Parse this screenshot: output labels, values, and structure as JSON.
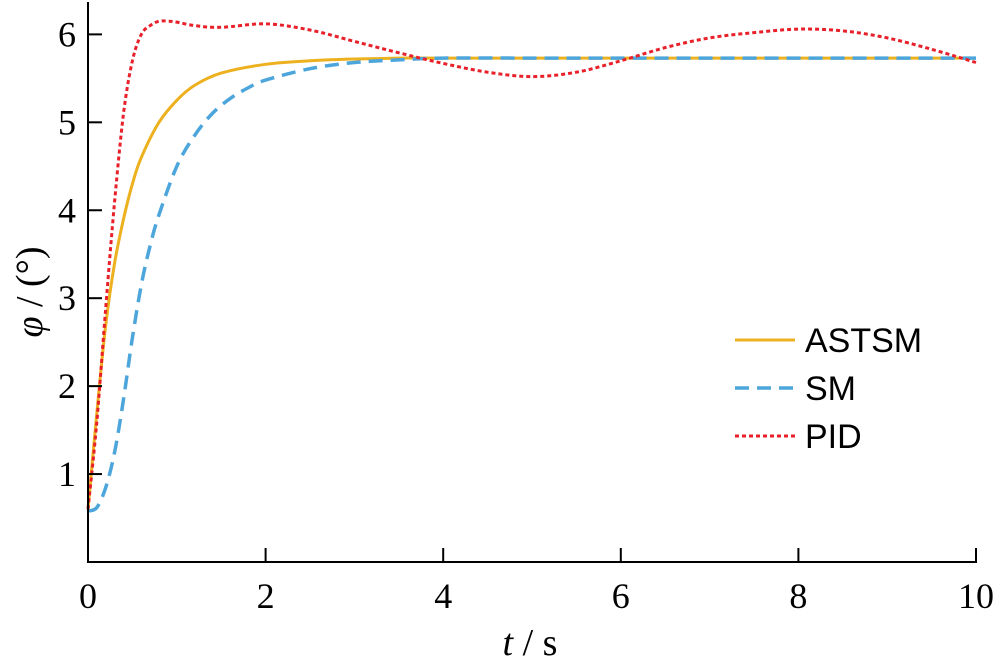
{
  "chart_data": {
    "type": "line",
    "xlabel_var": "t",
    "xlabel_sep": "/",
    "xlabel_unit": "s",
    "ylabel_var": "φ",
    "ylabel_sep": "/",
    "ylabel_unit": "(°)",
    "xlim": [
      0,
      10
    ],
    "ylim": [
      0,
      6.3
    ],
    "xticks": [
      0,
      2,
      4,
      6,
      8,
      10
    ],
    "yticks": [
      1,
      2,
      3,
      4,
      5,
      6
    ],
    "xtick_labels": [
      "0",
      "2",
      "4",
      "6",
      "8",
      "10"
    ],
    "ytick_labels": [
      "1",
      "2",
      "3",
      "4",
      "5",
      "6"
    ],
    "grid": false,
    "legend_position": "right",
    "series": [
      {
        "name": "ASTSM",
        "color": "#EDB120",
        "style": "solid",
        "x": [
          0.0,
          0.1,
          0.2,
          0.3,
          0.4,
          0.5,
          0.6,
          0.8,
          1.0,
          1.2,
          1.5,
          2.0,
          2.5,
          3.0,
          3.5,
          4.0,
          5.0,
          6.0,
          7.0,
          8.0,
          9.0,
          10.0
        ],
        "y": [
          0.6,
          1.7,
          2.7,
          3.4,
          3.9,
          4.3,
          4.6,
          5.0,
          5.25,
          5.42,
          5.56,
          5.66,
          5.7,
          5.72,
          5.73,
          5.73,
          5.73,
          5.73,
          5.73,
          5.73,
          5.73,
          5.73
        ]
      },
      {
        "name": "SM",
        "color": "#4DA6DB",
        "style": "dashed",
        "x": [
          0.0,
          0.1,
          0.2,
          0.3,
          0.4,
          0.5,
          0.6,
          0.7,
          0.8,
          1.0,
          1.2,
          1.4,
          1.6,
          1.8,
          2.0,
          2.5,
          3.0,
          3.5,
          4.0,
          5.0,
          6.0,
          7.0,
          8.0,
          9.0,
          10.0
        ],
        "y": [
          0.58,
          0.62,
          0.85,
          1.25,
          1.85,
          2.55,
          3.15,
          3.6,
          3.95,
          4.5,
          4.85,
          5.1,
          5.27,
          5.39,
          5.48,
          5.61,
          5.68,
          5.71,
          5.73,
          5.73,
          5.73,
          5.73,
          5.73,
          5.73,
          5.73
        ]
      },
      {
        "name": "PID",
        "color": "#E8202A",
        "style": "dotted",
        "x": [
          0.0,
          0.1,
          0.2,
          0.3,
          0.4,
          0.5,
          0.6,
          0.7,
          0.8,
          0.9,
          1.0,
          1.2,
          1.5,
          2.0,
          2.5,
          3.0,
          3.5,
          4.0,
          4.5,
          5.0,
          5.5,
          6.0,
          6.5,
          7.0,
          7.5,
          8.0,
          8.5,
          9.0,
          9.5,
          10.0
        ],
        "y": [
          0.6,
          1.6,
          2.9,
          4.1,
          5.1,
          5.7,
          6.0,
          6.1,
          6.15,
          6.15,
          6.14,
          6.1,
          6.08,
          6.12,
          6.05,
          5.92,
          5.79,
          5.67,
          5.57,
          5.52,
          5.57,
          5.7,
          5.85,
          5.96,
          6.02,
          6.06,
          6.04,
          5.96,
          5.83,
          5.68
        ]
      }
    ]
  }
}
